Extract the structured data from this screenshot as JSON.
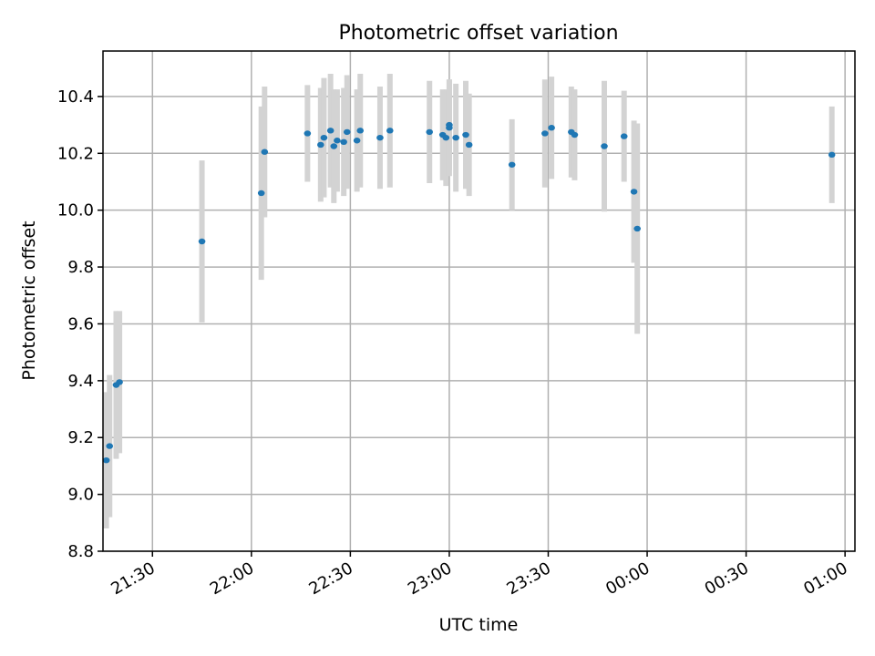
{
  "chart_data": {
    "type": "scatter",
    "title": "Photometric offset variation",
    "xlabel": "UTC time",
    "ylabel": "Photometric offset",
    "xlim": [
      "21:15",
      "01:03"
    ],
    "ylim": [
      8.8,
      10.56
    ],
    "grid": true,
    "x_ticks": [
      "21:30",
      "22:00",
      "22:30",
      "23:00",
      "23:30",
      "00:00",
      "00:30",
      "01:00"
    ],
    "y_ticks": [
      "8.8",
      "9.0",
      "9.2",
      "9.4",
      "9.6",
      "9.8",
      "10.0",
      "10.2",
      "10.4"
    ],
    "series": [
      {
        "marker_color": "#1f77b4",
        "errorbar_color": "#d3d3d3",
        "points": [
          {
            "x": "21:16",
            "y": 9.12,
            "err": 0.24
          },
          {
            "x": "21:17",
            "y": 9.17,
            "err": 0.25
          },
          {
            "x": "21:19",
            "y": 9.385,
            "err": 0.26
          },
          {
            "x": "21:20",
            "y": 9.395,
            "err": 0.25
          },
          {
            "x": "21:45",
            "y": 9.89,
            "err": 0.285
          },
          {
            "x": "22:03",
            "y": 10.06,
            "err": 0.305
          },
          {
            "x": "22:04",
            "y": 10.205,
            "err": 0.23
          },
          {
            "x": "22:17",
            "y": 10.27,
            "err": 0.17
          },
          {
            "x": "22:21",
            "y": 10.23,
            "err": 0.2
          },
          {
            "x": "22:22",
            "y": 10.255,
            "err": 0.21
          },
          {
            "x": "22:24",
            "y": 10.28,
            "err": 0.2
          },
          {
            "x": "22:25",
            "y": 10.225,
            "err": 0.2
          },
          {
            "x": "22:26",
            "y": 10.245,
            "err": 0.18
          },
          {
            "x": "22:28",
            "y": 10.24,
            "err": 0.19
          },
          {
            "x": "22:29",
            "y": 10.275,
            "err": 0.2
          },
          {
            "x": "22:32",
            "y": 10.245,
            "err": 0.18
          },
          {
            "x": "22:33",
            "y": 10.28,
            "err": 0.2
          },
          {
            "x": "22:39",
            "y": 10.255,
            "err": 0.18
          },
          {
            "x": "22:42",
            "y": 10.28,
            "err": 0.2
          },
          {
            "x": "22:54",
            "y": 10.275,
            "err": 0.18
          },
          {
            "x": "22:58",
            "y": 10.265,
            "err": 0.16
          },
          {
            "x": "22:59",
            "y": 10.255,
            "err": 0.17
          },
          {
            "x": "23:00",
            "y": 10.29,
            "err": 0.17
          },
          {
            "x": "23:00",
            "y": 10.3,
            "err": 0.16
          },
          {
            "x": "23:02",
            "y": 10.255,
            "err": 0.19
          },
          {
            "x": "23:05",
            "y": 10.265,
            "err": 0.19
          },
          {
            "x": "23:06",
            "y": 10.23,
            "err": 0.18
          },
          {
            "x": "23:19",
            "y": 10.16,
            "err": 0.16
          },
          {
            "x": "23:29",
            "y": 10.27,
            "err": 0.19
          },
          {
            "x": "23:31",
            "y": 10.29,
            "err": 0.18
          },
          {
            "x": "23:37",
            "y": 10.275,
            "err": 0.16
          },
          {
            "x": "23:38",
            "y": 10.265,
            "err": 0.16
          },
          {
            "x": "23:47",
            "y": 10.225,
            "err": 0.23
          },
          {
            "x": "23:53",
            "y": 10.26,
            "err": 0.16
          },
          {
            "x": "23:56",
            "y": 10.065,
            "err": 0.25
          },
          {
            "x": "23:57",
            "y": 9.935,
            "err": 0.37
          },
          {
            "x": "00:56",
            "y": 10.195,
            "err": 0.17
          }
        ]
      }
    ]
  }
}
